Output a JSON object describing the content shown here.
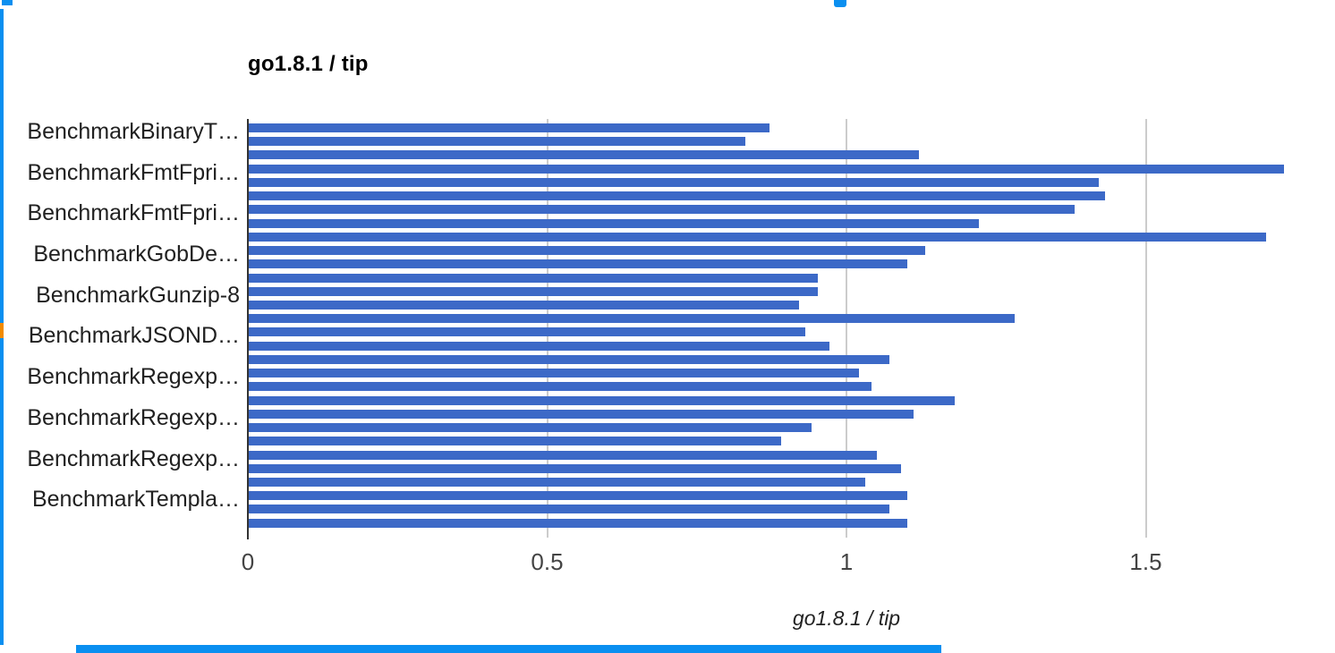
{
  "window": {
    "accent_color": "#0A8FF0",
    "left_edge_orange_color": "#F28B00"
  },
  "chart_data": {
    "type": "bar",
    "orientation": "horizontal",
    "title": "go1.8.1 / tip",
    "xlabel": "go1.8.1 / tip",
    "xlim": [
      0,
      2
    ],
    "xticks": [
      {
        "label": "0",
        "value": 0
      },
      {
        "label": "0.5",
        "value": 0.5
      },
      {
        "label": "1",
        "value": 1
      },
      {
        "label": "1.5",
        "value": 1.5
      }
    ],
    "grid": true,
    "legend_position": "none",
    "bar_color": "#3C69C7",
    "axis_line_color": "#333333",
    "gridline_color": "#CCCCCC",
    "rows": [
      {
        "label": "BenchmarkBinaryT…",
        "value": 0.87
      },
      {
        "label": "",
        "value": 0.83
      },
      {
        "label": "",
        "value": 1.12
      },
      {
        "label": "BenchmarkFmtFpri…",
        "value": 1.73
      },
      {
        "label": "",
        "value": 1.42
      },
      {
        "label": "",
        "value": 1.43
      },
      {
        "label": "BenchmarkFmtFpri…",
        "value": 1.38
      },
      {
        "label": "",
        "value": 1.22
      },
      {
        "label": "",
        "value": 1.7
      },
      {
        "label": "BenchmarkGobDe…",
        "value": 1.13
      },
      {
        "label": "",
        "value": 1.1
      },
      {
        "label": "",
        "value": 0.95
      },
      {
        "label": "BenchmarkGunzip-8",
        "value": 0.95
      },
      {
        "label": "",
        "value": 0.92
      },
      {
        "label": "",
        "value": 1.28
      },
      {
        "label": "BenchmarkJSOND…",
        "value": 0.93
      },
      {
        "label": "",
        "value": 0.97
      },
      {
        "label": "",
        "value": 1.07
      },
      {
        "label": "BenchmarkRegexp…",
        "value": 1.02
      },
      {
        "label": "",
        "value": 1.04
      },
      {
        "label": "",
        "value": 1.18
      },
      {
        "label": "BenchmarkRegexp…",
        "value": 1.11
      },
      {
        "label": "",
        "value": 0.94
      },
      {
        "label": "",
        "value": 0.89
      },
      {
        "label": "BenchmarkRegexp…",
        "value": 1.05
      },
      {
        "label": "",
        "value": 1.09
      },
      {
        "label": "",
        "value": 1.03
      },
      {
        "label": "BenchmarkTempla…",
        "value": 1.1
      },
      {
        "label": "",
        "value": 1.07
      },
      {
        "label": "",
        "value": 1.1
      }
    ]
  }
}
